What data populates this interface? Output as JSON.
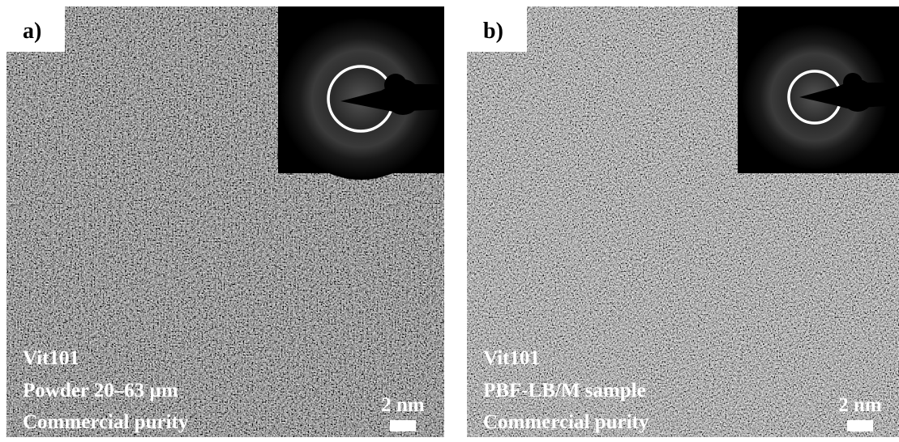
{
  "panels": [
    {
      "label": "a)",
      "lines": [
        "Vit101",
        "Powder 20–63 µm",
        "Commercial purity"
      ],
      "scale_bar": "2 nm"
    },
    {
      "label": "b)",
      "lines": [
        "Vit101",
        "PBF-LB/M sample",
        "Commercial purity"
      ],
      "scale_bar": "2 nm"
    }
  ]
}
